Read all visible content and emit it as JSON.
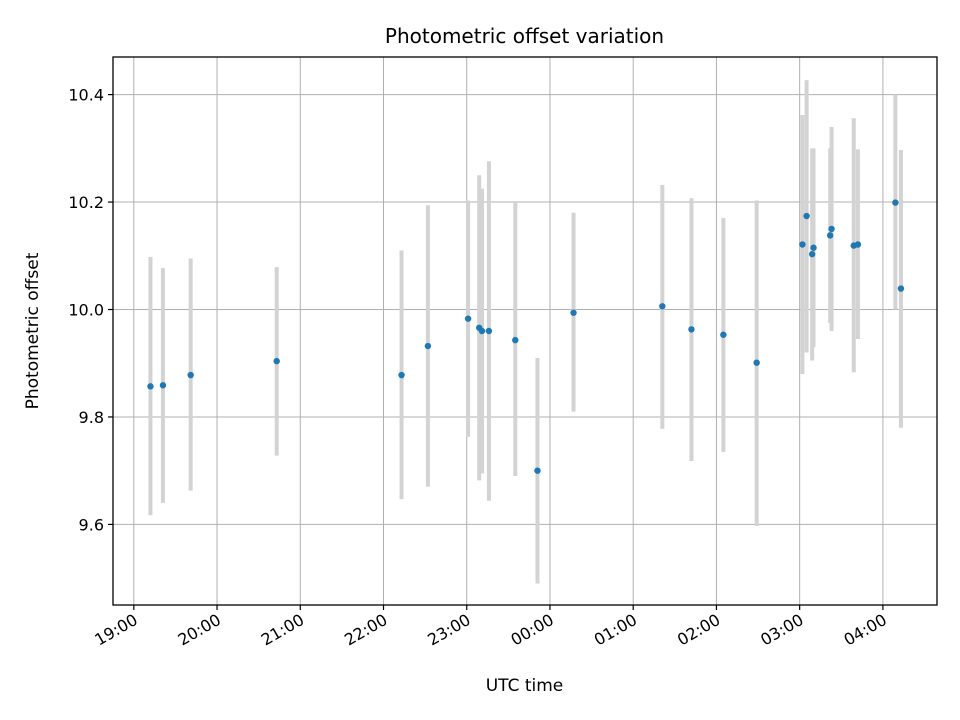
{
  "chart_data": {
    "type": "scatter",
    "title": "Photometric offset variation",
    "xlabel": "UTC time",
    "ylabel": "Photometric offset",
    "x_ticks": [
      "19:00",
      "20:00",
      "21:00",
      "22:00",
      "23:00",
      "00:00",
      "01:00",
      "02:00",
      "03:00",
      "04:00"
    ],
    "y_ticks": [
      9.6,
      9.8,
      10.0,
      10.2,
      10.4
    ],
    "xlim_hours": [
      18.75,
      28.65
    ],
    "ylim": [
      9.45,
      10.47
    ],
    "grid": true,
    "legend": "none",
    "colors": {
      "point": "#1f77b4",
      "errorbar": "#d3d3d3",
      "grid": "#b0b0b0"
    },
    "points": [
      {
        "t": "19:12",
        "y": 9.857,
        "lo": 9.617,
        "hi": 10.098
      },
      {
        "t": "19:21",
        "y": 9.859,
        "lo": 9.64,
        "hi": 10.077
      },
      {
        "t": "19:41",
        "y": 9.878,
        "lo": 9.663,
        "hi": 10.095
      },
      {
        "t": "20:43",
        "y": 9.904,
        "lo": 9.728,
        "hi": 10.079
      },
      {
        "t": "22:13",
        "y": 9.878,
        "lo": 9.647,
        "hi": 10.11
      },
      {
        "t": "22:32",
        "y": 9.932,
        "lo": 9.67,
        "hi": 10.194
      },
      {
        "t": "23:01",
        "y": 9.983,
        "lo": 9.763,
        "hi": 10.203
      },
      {
        "t": "23:09",
        "y": 9.966,
        "lo": 9.682,
        "hi": 10.25
      },
      {
        "t": "23:11",
        "y": 9.96,
        "lo": 9.695,
        "hi": 10.225
      },
      {
        "t": "23:16",
        "y": 9.96,
        "lo": 9.644,
        "hi": 10.276
      },
      {
        "t": "23:35",
        "y": 9.943,
        "lo": 9.69,
        "hi": 10.2
      },
      {
        "t": "23:51",
        "y": 9.7,
        "lo": 9.49,
        "hi": 9.91
      },
      {
        "t": "00:17",
        "y": 9.994,
        "lo": 9.81,
        "hi": 10.18
      },
      {
        "t": "01:21",
        "y": 10.006,
        "lo": 9.778,
        "hi": 10.232
      },
      {
        "t": "01:42",
        "y": 9.963,
        "lo": 9.718,
        "hi": 10.207
      },
      {
        "t": "02:05",
        "y": 9.953,
        "lo": 9.735,
        "hi": 10.17
      },
      {
        "t": "02:29",
        "y": 9.901,
        "lo": 9.597,
        "hi": 10.203
      },
      {
        "t": "03:02",
        "y": 10.121,
        "lo": 9.88,
        "hi": 10.362
      },
      {
        "t": "03:05",
        "y": 10.174,
        "lo": 9.92,
        "hi": 10.427
      },
      {
        "t": "03:09",
        "y": 10.103,
        "lo": 9.905,
        "hi": 10.3
      },
      {
        "t": "03:10",
        "y": 10.115,
        "lo": 9.93,
        "hi": 10.3
      },
      {
        "t": "03:22",
        "y": 10.138,
        "lo": 9.975,
        "hi": 10.3
      },
      {
        "t": "03:23",
        "y": 10.15,
        "lo": 9.96,
        "hi": 10.34
      },
      {
        "t": "03:39",
        "y": 10.119,
        "lo": 9.883,
        "hi": 10.356
      },
      {
        "t": "03:42",
        "y": 10.121,
        "lo": 9.945,
        "hi": 10.298
      },
      {
        "t": "04:09",
        "y": 10.199,
        "lo": 10.0,
        "hi": 10.4
      },
      {
        "t": "04:13",
        "y": 10.039,
        "lo": 9.78,
        "hi": 10.297
      }
    ]
  }
}
